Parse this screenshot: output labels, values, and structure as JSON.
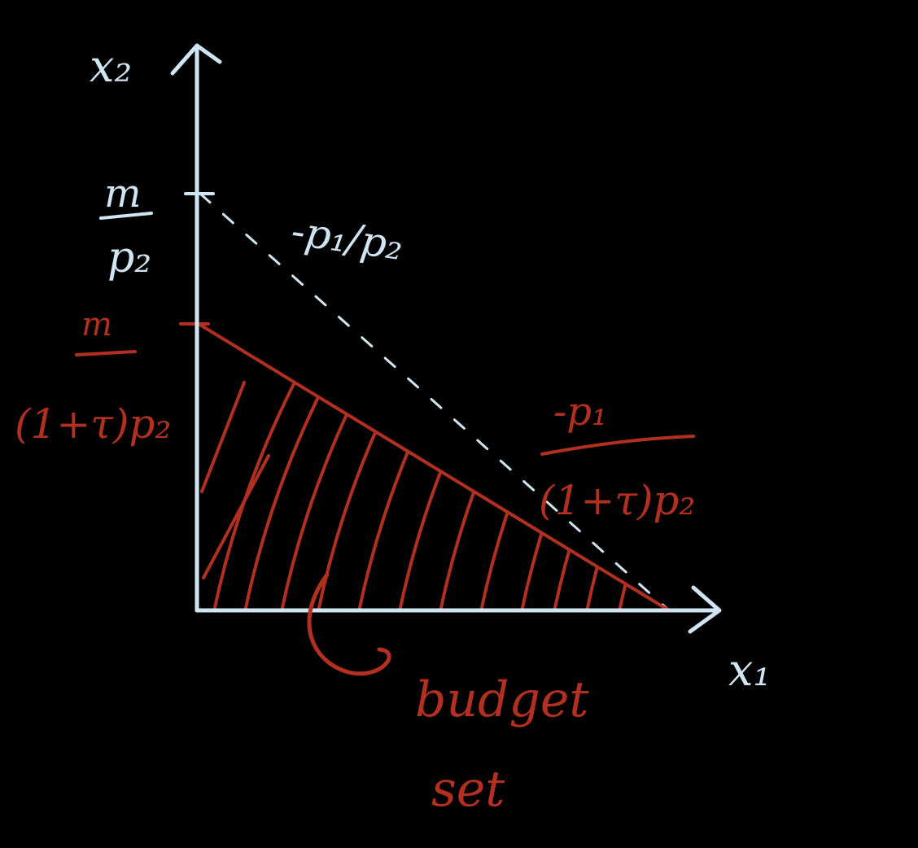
{
  "axes": {
    "x_label": "x₁",
    "y_label": "x₂"
  },
  "original_budget_line": {
    "intercept_label_numerator": "m",
    "intercept_label_denominator": "p₂",
    "slope_label": "-p₁/p₂"
  },
  "taxed_budget_line": {
    "intercept_label_numerator": "m",
    "intercept_label_denominator": "(1+τ)p₂",
    "slope_label_numerator": "-p₁",
    "slope_label_denominator": "(1+τ)p₂"
  },
  "region": {
    "label_line1": "budget",
    "label_line2": "set"
  },
  "colors": {
    "background": "#000000",
    "axes": "#cfe5f2",
    "budget_set": "#b32f1f"
  }
}
